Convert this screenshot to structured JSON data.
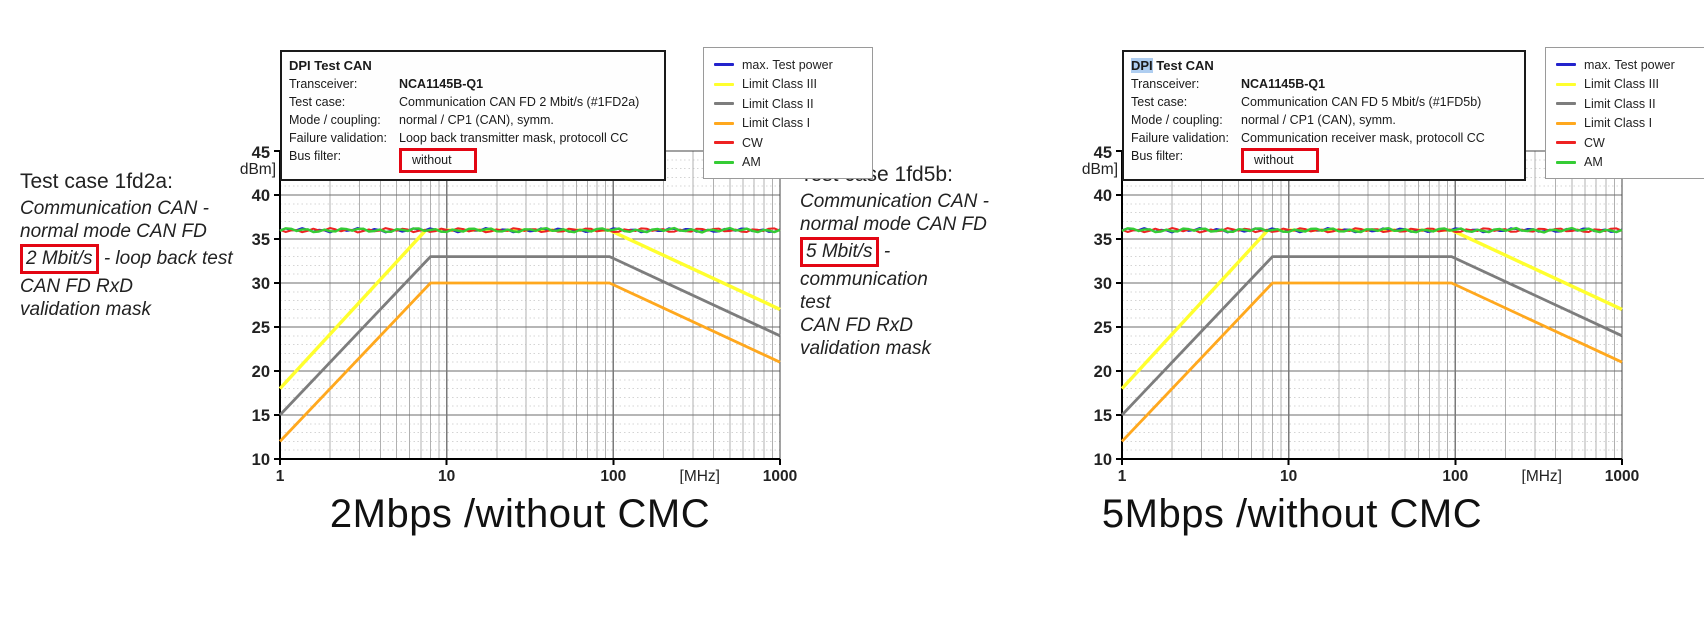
{
  "figure": {
    "background": "#ffffff",
    "accent_red": "#e30613",
    "selection_blue": "#aecdf0"
  },
  "charts": [
    {
      "side_text": {
        "title": "Test case 1fd2a:",
        "pre_lines": [
          "Communication CAN -",
          "normal mode CAN FD"
        ],
        "boxed": "2 Mbit/s",
        "after_boxed": "- loop back test",
        "post_lines": [
          "CAN FD RxD",
          "validation mask"
        ]
      },
      "infobox": {
        "title_dpi": "DPI",
        "title_rest": " Test CAN",
        "rows": [
          {
            "label": "Transceiver:",
            "value": "NCA1145B-Q1"
          },
          {
            "label": "Test case:",
            "value": "Communication CAN FD 2 Mbit/s (#1FD2a)"
          },
          {
            "label": "Mode / coupling:",
            "value": "normal / CP1 (CAN), symm."
          },
          {
            "label": "Failure validation:",
            "value": "Loop back transmitter mask, protocoll CC"
          },
          {
            "label": "Bus filter:",
            "value": "without"
          }
        ]
      },
      "legend": [
        "max. Test power",
        "Limit Class III",
        "Limit Class II",
        "Limit Class I",
        "CW",
        "AM"
      ],
      "caption": "2Mbps /without CMC"
    },
    {
      "side_text": {
        "title": "Test case 1fd5b:",
        "pre_lines": [
          "Communication CAN -",
          "normal mode CAN FD"
        ],
        "boxed": "5 Mbit/s",
        "after_boxed": "- communication",
        "post_lines": [
          "test",
          "CAN FD RxD",
          "validation mask"
        ]
      },
      "infobox": {
        "title_dpi": "DPI",
        "title_rest": " Test CAN",
        "rows": [
          {
            "label": "Transceiver:",
            "value": "NCA1145B-Q1"
          },
          {
            "label": "Test case:",
            "value": "Communication CAN FD 5 Mbit/s (#1FD5b)"
          },
          {
            "label": "Mode / coupling:",
            "value": "normal / CP1 (CAN), symm."
          },
          {
            "label": "Failure validation:",
            "value": "Communication receiver mask, protocoll CC"
          },
          {
            "label": "Bus filter:",
            "value": "without"
          }
        ]
      },
      "legend": [
        "max. Test power",
        "Limit Class III",
        "Limit Class II",
        "Limit Class I",
        "CW",
        "AM"
      ],
      "caption": "5Mbps /without CMC"
    }
  ],
  "chart_data": [
    {
      "type": "line",
      "title": "DPI Test CAN - Communication CAN FD 2 Mbit/s (#1FD2a)",
      "x_axis": {
        "label": "[MHz]",
        "scale": "log",
        "min": 1,
        "max": 1000,
        "ticks": [
          1,
          10,
          100,
          1000
        ]
      },
      "y_axis": {
        "label": "[dBm]",
        "min": 10,
        "max": 45,
        "ticks": [
          10,
          15,
          20,
          25,
          30,
          35,
          40,
          45
        ]
      },
      "grid": true,
      "legend_position": "outside-top-right",
      "series": [
        {
          "name": "max. Test power",
          "color": "#2323cc",
          "style": "flat-noise",
          "points": [
            [
              1,
              36
            ],
            [
              1000,
              36
            ]
          ]
        },
        {
          "name": "Limit Class III",
          "color": "#ffff2e",
          "style": "segments",
          "points": [
            [
              1,
              18
            ],
            [
              7.5,
              36
            ],
            [
              95,
              36
            ],
            [
              1000,
              27
            ]
          ]
        },
        {
          "name": "Limit Class II",
          "color": "#7d7d7d",
          "style": "segments",
          "points": [
            [
              1,
              15
            ],
            [
              8,
              33
            ],
            [
              95,
              33
            ],
            [
              1000,
              24
            ]
          ]
        },
        {
          "name": "Limit Class I",
          "color": "#ffa81e",
          "style": "segments",
          "points": [
            [
              1,
              12
            ],
            [
              8,
              30
            ],
            [
              95,
              30
            ],
            [
              1000,
              21
            ]
          ]
        },
        {
          "name": "CW",
          "color": "#ee2222",
          "style": "flat-noise",
          "points": [
            [
              1,
              36
            ],
            [
              1000,
              36
            ]
          ]
        },
        {
          "name": "AM",
          "color": "#35cc35",
          "style": "flat-noise",
          "points": [
            [
              1,
              36
            ],
            [
              1000,
              36
            ]
          ]
        }
      ]
    },
    {
      "type": "line",
      "title": "DPI Test CAN - Communication CAN FD 5 Mbit/s (#1FD5b)",
      "x_axis": {
        "label": "[MHz]",
        "scale": "log",
        "min": 1,
        "max": 1000,
        "ticks": [
          1,
          10,
          100,
          1000
        ]
      },
      "y_axis": {
        "label": "[dBm]",
        "min": 10,
        "max": 45,
        "ticks": [
          10,
          15,
          20,
          25,
          30,
          35,
          40,
          45
        ]
      },
      "grid": true,
      "legend_position": "outside-top-right",
      "series": [
        {
          "name": "max. Test power",
          "color": "#2323cc",
          "style": "flat-noise",
          "points": [
            [
              1,
              36
            ],
            [
              1000,
              36
            ]
          ]
        },
        {
          "name": "Limit Class III",
          "color": "#ffff2e",
          "style": "segments",
          "points": [
            [
              1,
              18
            ],
            [
              7.5,
              36
            ],
            [
              95,
              36
            ],
            [
              1000,
              27
            ]
          ]
        },
        {
          "name": "Limit Class II",
          "color": "#7d7d7d",
          "style": "segments",
          "points": [
            [
              1,
              15
            ],
            [
              8,
              33
            ],
            [
              95,
              33
            ],
            [
              1000,
              24
            ]
          ]
        },
        {
          "name": "Limit Class I",
          "color": "#ffa81e",
          "style": "segments",
          "points": [
            [
              1,
              12
            ],
            [
              8,
              30
            ],
            [
              95,
              30
            ],
            [
              1000,
              21
            ]
          ]
        },
        {
          "name": "CW",
          "color": "#ee2222",
          "style": "flat-noise",
          "points": [
            [
              1,
              36
            ],
            [
              1000,
              36
            ]
          ]
        },
        {
          "name": "AM",
          "color": "#35cc35",
          "style": "flat-noise",
          "points": [
            [
              1,
              36
            ],
            [
              1000,
              36
            ]
          ]
        }
      ]
    }
  ]
}
